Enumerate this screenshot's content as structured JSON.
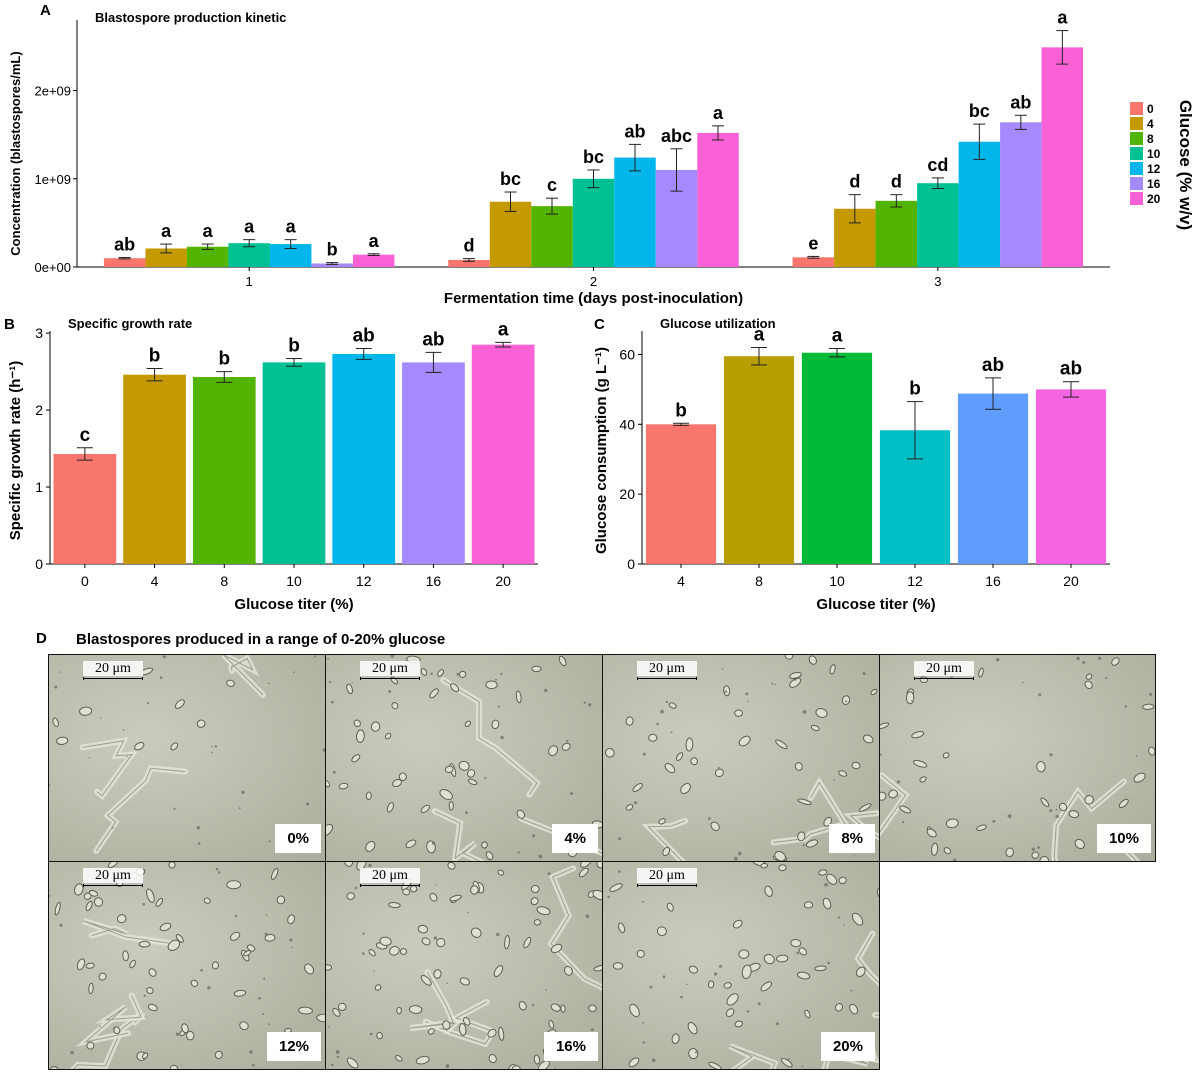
{
  "panels": {
    "A": {
      "letter": "A"
    },
    "B": {
      "letter": "B"
    },
    "C": {
      "letter": "C"
    },
    "D": {
      "letter": "D",
      "title": "Blastospores produced in a range of 0-20% glucose",
      "scale_label": "20 μm",
      "images": [
        "0%",
        "4%",
        "8%",
        "10%",
        "12%",
        "16%",
        "20%"
      ]
    }
  },
  "chart_data": [
    {
      "id": "A",
      "type": "bar",
      "title": "Blastospore production kinetic",
      "xlabel": "Fermentation time (days post-inoculation)",
      "ylabel": "Concentration (blastospores/mL)",
      "categories": [
        "1",
        "2",
        "3"
      ],
      "ylim": [
        0,
        2800000000
      ],
      "yticks": [
        0,
        1000000000,
        2000000000
      ],
      "ytick_labels": [
        "0e+00",
        "1e+09",
        "2e+09"
      ],
      "legend": {
        "title": "Glucose (% w/v)",
        "placement": "right"
      },
      "series": [
        {
          "name": "0",
          "color": "#F8766D",
          "values": [
            100000000,
            80000000,
            110000000
          ],
          "errors": [
            8000000,
            15000000,
            10000000
          ],
          "letters": [
            "ab",
            "d",
            "e"
          ]
        },
        {
          "name": "4",
          "color": "#C49A00",
          "values": [
            210000000,
            740000000,
            660000000
          ],
          "errors": [
            50000000,
            110000000,
            160000000
          ],
          "letters": [
            "a",
            "bc",
            "d"
          ]
        },
        {
          "name": "8",
          "color": "#53B400",
          "values": [
            230000000,
            690000000,
            750000000
          ],
          "errors": [
            30000000,
            90000000,
            70000000
          ],
          "letters": [
            "a",
            "c",
            "d"
          ]
        },
        {
          "name": "10",
          "color": "#00C094",
          "values": [
            270000000,
            1000000000,
            950000000
          ],
          "errors": [
            40000000,
            100000000,
            60000000
          ],
          "letters": [
            "a",
            "bc",
            "cd"
          ]
        },
        {
          "name": "12",
          "color": "#00B6EB",
          "values": [
            260000000,
            1240000000,
            1420000000
          ],
          "errors": [
            50000000,
            150000000,
            200000000
          ],
          "letters": [
            "a",
            "ab",
            "bc"
          ]
        },
        {
          "name": "16",
          "color": "#A58AFF",
          "values": [
            40000000,
            1100000000,
            1640000000
          ],
          "errors": [
            10000000,
            240000000,
            80000000
          ],
          "letters": [
            "b",
            "abc",
            "ab"
          ]
        },
        {
          "name": "20",
          "color": "#FB61D7",
          "values": [
            140000000,
            1520000000,
            2490000000
          ],
          "errors": [
            10000000,
            80000000,
            190000000
          ],
          "letters": [
            "a",
            "a",
            "a"
          ]
        }
      ]
    },
    {
      "id": "B",
      "type": "bar",
      "title": "Specific growth rate",
      "xlabel": "Glucose titer (%)",
      "ylabel": "Specific growth rate (h⁻¹)",
      "categories": [
        "0",
        "4",
        "8",
        "10",
        "12",
        "16",
        "20"
      ],
      "values": [
        1.43,
        2.46,
        2.43,
        2.62,
        2.73,
        2.62,
        2.85
      ],
      "errors": [
        0.08,
        0.08,
        0.07,
        0.05,
        0.07,
        0.13,
        0.03
      ],
      "letters": [
        "c",
        "b",
        "b",
        "b",
        "ab",
        "ab",
        "a"
      ],
      "colors": [
        "#F8766D",
        "#C49A00",
        "#53B400",
        "#00C094",
        "#00B6EB",
        "#A58AFF",
        "#FB61D7"
      ],
      "ylim": [
        0,
        2.95
      ],
      "yticks": [
        0,
        1,
        2,
        3
      ]
    },
    {
      "id": "C",
      "type": "bar",
      "title": "Glucose utilization",
      "xlabel": "Glucose titer (%)",
      "ylabel": "Glucose consumption (g L⁻¹)",
      "categories": [
        "4",
        "8",
        "10",
        "12",
        "16",
        "20"
      ],
      "values": [
        40,
        59.5,
        60.5,
        38.3,
        48.8,
        50
      ],
      "errors": [
        0.3,
        2.5,
        1.2,
        8.2,
        4.5,
        2.2
      ],
      "letters": [
        "b",
        "a",
        "a",
        "b",
        "ab",
        "ab"
      ],
      "colors": [
        "#F8766D",
        "#B79F00",
        "#00BA38",
        "#00BFC4",
        "#619CFF",
        "#F564E3"
      ],
      "ylim": [
        0,
        65
      ],
      "yticks": [
        0,
        20,
        40,
        60
      ]
    }
  ]
}
